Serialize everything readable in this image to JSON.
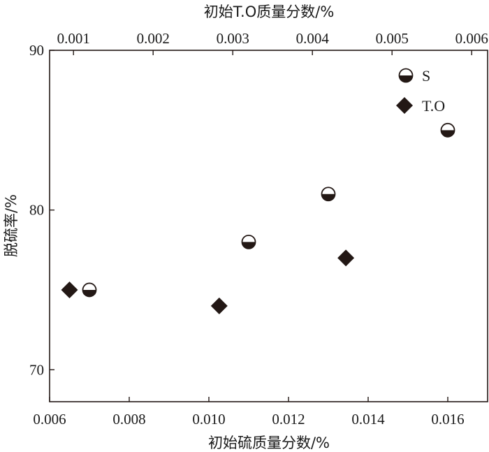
{
  "chart_data": {
    "type": "scatter",
    "title": "",
    "xlabel": "初始硫质量分数/%",
    "x2label": "初始T.O质量分数/%",
    "ylabel": "脱硫率/%",
    "xlim": [
      0.006,
      0.017
    ],
    "x2lim": [
      0.0007,
      0.0062
    ],
    "ylim": [
      68,
      90
    ],
    "xticks": [
      "0.006",
      "0.008",
      "0.010",
      "0.012",
      "0.014",
      "0.016"
    ],
    "x2ticks": [
      "0.001",
      "0.002",
      "0.003",
      "0.004",
      "0.005",
      "0.006"
    ],
    "yticks": [
      "70",
      "80",
      "90"
    ],
    "grid": false,
    "legend_position": "top-right",
    "series": [
      {
        "name": "S",
        "marker": "half-filled-circle",
        "axis": "bottom",
        "x": [
          0.007,
          0.011,
          0.013,
          0.016
        ],
        "y": [
          75,
          78,
          81,
          85
        ]
      },
      {
        "name": "T.O",
        "marker": "filled-diamond",
        "axis": "top",
        "x": [
          0.00095,
          0.00283,
          0.00442
        ],
        "y": [
          75,
          74,
          77
        ]
      }
    ],
    "colors": {
      "marker": "#231815",
      "axis": "#231815"
    }
  }
}
